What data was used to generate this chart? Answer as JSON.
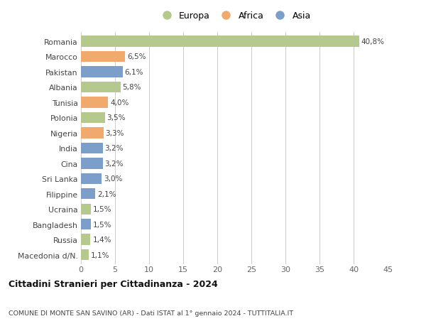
{
  "countries": [
    "Romania",
    "Marocco",
    "Pakistan",
    "Albania",
    "Tunisia",
    "Polonia",
    "Nigeria",
    "India",
    "Cina",
    "Sri Lanka",
    "Filippine",
    "Ucraina",
    "Bangladesh",
    "Russia",
    "Macedonia d/N."
  ],
  "values": [
    40.8,
    6.5,
    6.1,
    5.8,
    4.0,
    3.5,
    3.3,
    3.2,
    3.2,
    3.0,
    2.1,
    1.5,
    1.5,
    1.4,
    1.1
  ],
  "labels": [
    "40,8%",
    "6,5%",
    "6,1%",
    "5,8%",
    "4,0%",
    "3,5%",
    "3,3%",
    "3,2%",
    "3,2%",
    "3,0%",
    "2,1%",
    "1,5%",
    "1,5%",
    "1,4%",
    "1,1%"
  ],
  "continents": [
    "Europa",
    "Africa",
    "Asia",
    "Europa",
    "Africa",
    "Europa",
    "Africa",
    "Asia",
    "Asia",
    "Asia",
    "Asia",
    "Europa",
    "Asia",
    "Europa",
    "Europa"
  ],
  "colors": {
    "Europa": "#b5c98e",
    "Africa": "#f2a96e",
    "Asia": "#7b9fc8"
  },
  "legend_labels": [
    "Europa",
    "Africa",
    "Asia"
  ],
  "title": "Cittadini Stranieri per Cittadinanza - 2024",
  "subtitle": "COMUNE DI MONTE SAN SAVINO (AR) - Dati ISTAT al 1° gennaio 2024 - TUTTITALIA.IT",
  "xlim": [
    0,
    45
  ],
  "xticks": [
    0,
    5,
    10,
    15,
    20,
    25,
    30,
    35,
    40,
    45
  ],
  "bg_color": "#ffffff",
  "grid_color": "#cccccc",
  "bar_height": 0.72
}
